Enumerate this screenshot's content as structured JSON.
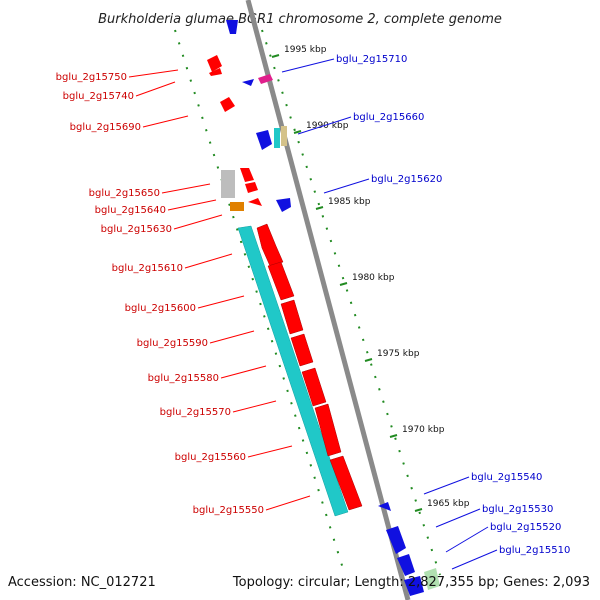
{
  "title": "Burkholderia glumae BGR1 chromosome 2, complete genome",
  "accession_text": "Accession: NC_012721",
  "summary_text": "Topology: circular; Length: 2,827,355 bp; Genes: 2,093",
  "colors": {
    "backbone": "#8a8a8a",
    "forward": "#ff0000",
    "reverse": "#1010e0",
    "forward_label": "#cc0000",
    "reverse_label": "#0000cc",
    "rna": "#20c8c8",
    "tick": "#228b22"
  },
  "scale_labels": [
    "1995 kbp",
    "1990 kbp",
    "1985 kbp",
    "1980 kbp",
    "1975 kbp",
    "1970 kbp",
    "1965 kbp"
  ],
  "forward_labels": [
    "bglu_2g15750",
    "bglu_2g15740",
    "bglu_2g15690",
    "bglu_2g15650",
    "bglu_2g15640",
    "bglu_2g15630",
    "bglu_2g15610",
    "bglu_2g15600",
    "bglu_2g15590",
    "bglu_2g15580",
    "bglu_2g15570",
    "bglu_2g15560",
    "bglu_2g15550"
  ],
  "reverse_labels": [
    "bglu_2g15710",
    "bglu_2g15660",
    "bglu_2g15620",
    "bglu_2g15540",
    "bglu_2g15530",
    "bglu_2g15520",
    "bglu_2g15510"
  ]
}
